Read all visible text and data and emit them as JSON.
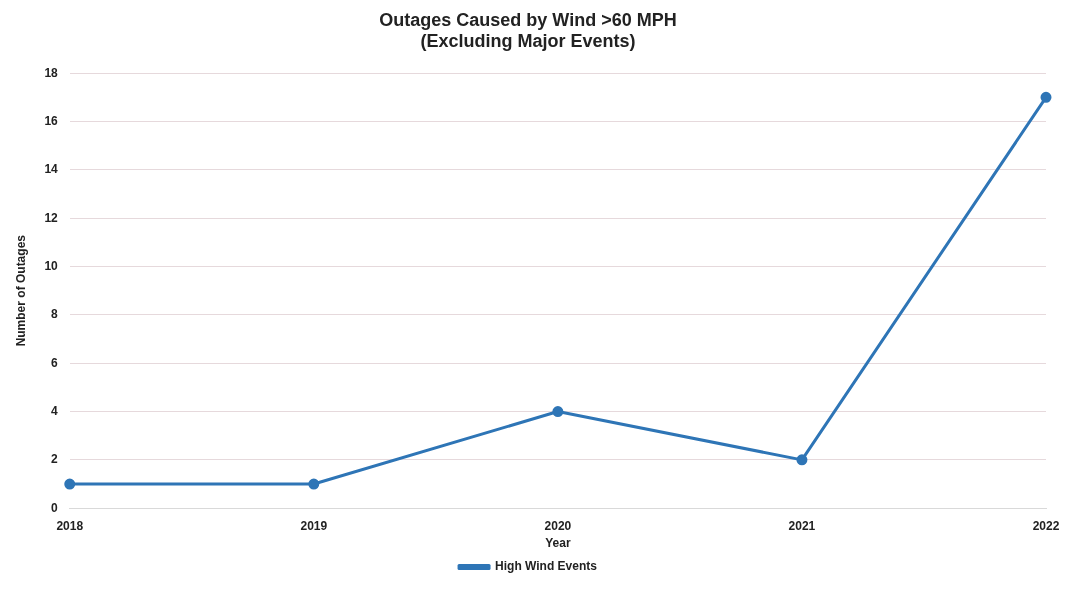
{
  "chart_data": {
    "type": "line",
    "title": "Outages Caused by Wind >60 MPH",
    "subtitle": "(Excluding Major Events)",
    "xlabel": "Year",
    "ylabel": "Number of Outages",
    "categories": [
      "2018",
      "2019",
      "2020",
      "2021",
      "2022"
    ],
    "series": [
      {
        "name": "High Wind Events",
        "color": "#2e75b6",
        "values": [
          1,
          1,
          4,
          2,
          17
        ]
      }
    ],
    "ylim": [
      0,
      18
    ],
    "yticks": [
      0,
      2,
      4,
      6,
      8,
      10,
      12,
      14,
      16,
      18
    ],
    "grid": "y",
    "legend": "bottom",
    "marker": "circle",
    "line_style": "solid"
  }
}
